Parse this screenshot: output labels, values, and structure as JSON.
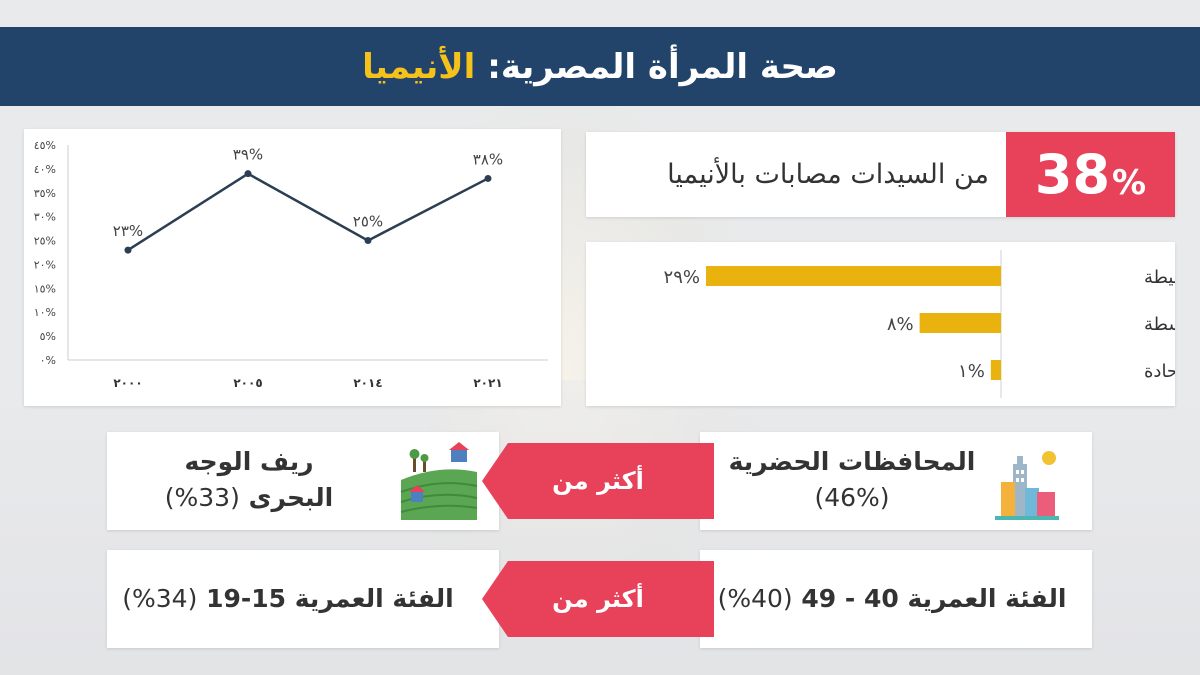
{
  "header": {
    "title_main": "صحة المرأة المصرية:",
    "title_highlight": "الأنيميا",
    "title_color": "#ffffff",
    "highlight_color": "#f4c21b",
    "background": "#22436a"
  },
  "stat": {
    "value": "38",
    "percent_sign": "%",
    "text": "من السيدات مصابات بالأنيميا",
    "accent": "#e8415a"
  },
  "chart_data": [
    {
      "type": "line",
      "x": [
        "٢٠٠٠",
        "٢٠٠٥",
        "٢٠١٤",
        "٢٠٢١"
      ],
      "y": [
        23,
        39,
        25,
        38
      ],
      "data_labels": [
        "٢٣%",
        "٣٩%",
        "٢٥%",
        "٣٨%"
      ],
      "ytick_labels": [
        "٠%",
        "٥%",
        "١٠%",
        "١٥%",
        "٢٠%",
        "٢٥%",
        "٣٠%",
        "٣٥%",
        "٤٠%",
        "٤٥%"
      ],
      "ylim": [
        0,
        45
      ],
      "grid": false,
      "line_color": "#2b3e52"
    },
    {
      "type": "bar",
      "orientation": "horizontal",
      "categories": [
        "أنيميا بسيطة",
        "أنيميا متوسطة",
        "أنيميا حادة"
      ],
      "values": [
        29,
        8,
        1
      ],
      "data_labels": [
        "٢٩%",
        "٨%",
        "١%"
      ],
      "bar_color": "#e9b20e",
      "xlim": [
        0,
        100
      ]
    }
  ],
  "comparisons": [
    {
      "left": {
        "line1": "ريف الوجه",
        "line2": "البحرى",
        "value": "(33%)"
      },
      "right": {
        "line1": "المحافظات الحضرية",
        "value": "(46%)"
      },
      "arrow_label": "أكثر من",
      "left_icon": "countryside-houses-icon",
      "right_icon": "city-buildings-icon"
    },
    {
      "left": {
        "line1": "الفئة العمرية 15-19",
        "value": "(34%)"
      },
      "right": {
        "line1": "الفئة العمرية 40 - 49",
        "value": "(40%)"
      },
      "arrow_label": "أكثر من"
    }
  ]
}
